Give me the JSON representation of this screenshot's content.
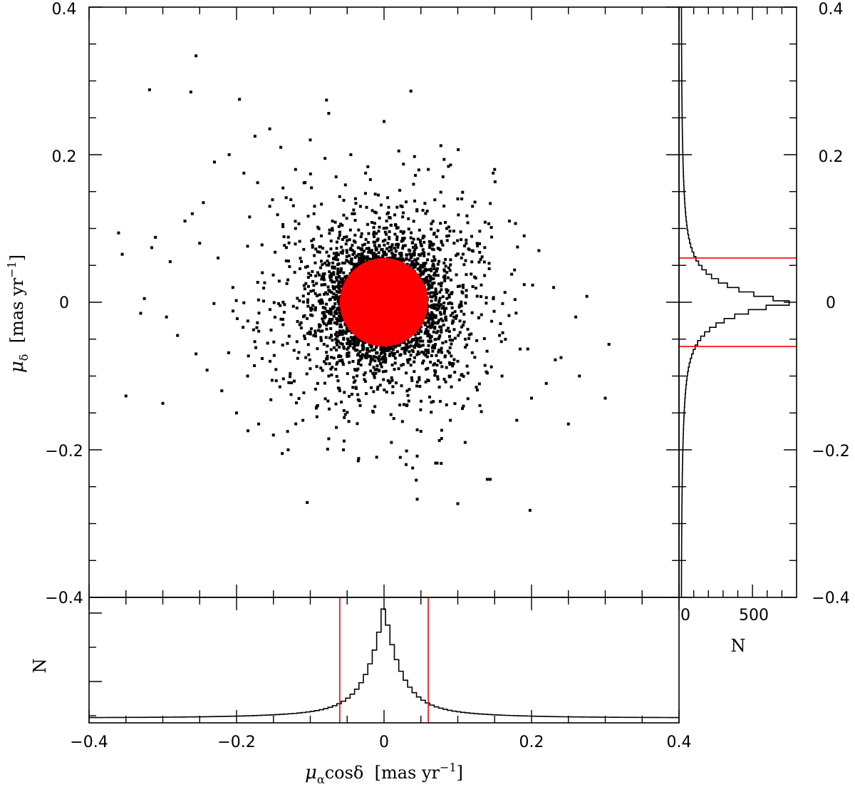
{
  "chart_data": {
    "type": "scatter",
    "panels": [
      "main-scatter",
      "bottom-histogram",
      "right-histogram"
    ],
    "xlim": [
      -0.4,
      0.4
    ],
    "ylim": [
      -0.4,
      0.4
    ],
    "x_ticks": [
      "−0.4",
      "−0.2",
      "0",
      "0.2",
      "0.4"
    ],
    "y_ticks": [
      "−0.4",
      "−0.2",
      "0",
      "0.2",
      "0.4"
    ],
    "xlabel": {
      "symbol": "μ",
      "sub": "α",
      "rest": "cosδ  [mas yr",
      "exp": "−1",
      "close": "]"
    },
    "ylabel": {
      "symbol": "μ",
      "sub": "δ",
      "rest": "  [mas yr",
      "exp": "−1",
      "close": "]"
    },
    "hist_x_label": "N",
    "hist_y_label": "N",
    "hist_y_ticks": [
      "0",
      "500"
    ],
    "hist_y_xlim": [
      0,
      800
    ],
    "selection_radius": 0.06,
    "circle_center": [
      0.0,
      0.0
    ],
    "colors": {
      "points": "#000000",
      "selection": "#ff0000",
      "axes": "#000000"
    },
    "scatter_points": [
      [
        -0.36,
        0.094
      ],
      [
        -0.355,
        0.065
      ],
      [
        -0.33,
        -0.015
      ],
      [
        -0.325,
        0.005
      ],
      [
        -0.315,
        0.074
      ],
      [
        -0.31,
        0.088
      ],
      [
        -0.3,
        -0.137
      ],
      [
        -0.295,
        -0.02
      ],
      [
        -0.29,
        0.055
      ],
      [
        -0.28,
        -0.045
      ],
      [
        -0.27,
        0.11
      ],
      [
        -0.26,
        0.12
      ],
      [
        -0.255,
        -0.07
      ],
      [
        -0.25,
        0.08
      ],
      [
        -0.245,
        0.135
      ],
      [
        -0.24,
        -0.092
      ],
      [
        -0.23,
        0.19
      ],
      [
        -0.225,
        0.06
      ],
      [
        -0.22,
        -0.12
      ],
      [
        -0.21,
        0.2
      ],
      [
        -0.205,
        0.02
      ],
      [
        -0.2,
        -0.15
      ],
      [
        -0.19,
        0.175
      ],
      [
        -0.185,
        -0.1
      ],
      [
        -0.175,
        0.225
      ],
      [
        -0.17,
        -0.165
      ],
      [
        -0.165,
        0.04
      ],
      [
        -0.155,
        0.235
      ],
      [
        -0.15,
        -0.18
      ],
      [
        -0.14,
        0.21
      ],
      [
        -0.13,
        -0.2
      ],
      [
        -0.12,
        0.18
      ],
      [
        -0.11,
        -0.16
      ],
      [
        -0.1,
        0.22
      ],
      [
        -0.09,
        -0.14
      ],
      [
        -0.08,
        0.195
      ],
      [
        -0.075,
        -0.185
      ],
      [
        -0.065,
        0.17
      ],
      [
        -0.055,
        -0.2
      ],
      [
        -0.045,
        0.2
      ],
      [
        -0.035,
        -0.215
      ],
      [
        -0.025,
        0.175
      ],
      [
        -0.01,
        -0.21
      ],
      [
        0.0,
        0.245
      ],
      [
        0.01,
        -0.19
      ],
      [
        0.02,
        0.205
      ],
      [
        0.03,
        -0.22
      ],
      [
        0.04,
        0.16
      ],
      [
        0.05,
        -0.175
      ],
      [
        0.06,
        0.18
      ],
      [
        0.07,
        -0.218
      ],
      [
        0.08,
        0.17
      ],
      [
        0.09,
        -0.16
      ],
      [
        0.1,
        0.14
      ],
      [
        0.11,
        -0.19
      ],
      [
        0.12,
        0.13
      ],
      [
        0.13,
        -0.14
      ],
      [
        0.14,
        -0.24
      ],
      [
        0.15,
        0.18
      ],
      [
        0.16,
        -0.1
      ],
      [
        0.17,
        0.11
      ],
      [
        0.18,
        -0.16
      ],
      [
        0.19,
        0.09
      ],
      [
        0.2,
        -0.13
      ],
      [
        0.21,
        0.07
      ],
      [
        0.22,
        -0.11
      ],
      [
        0.23,
        0.02
      ],
      [
        0.24,
        -0.075
      ],
      [
        0.25,
        -0.165
      ],
      [
        0.26,
        -0.02
      ],
      [
        0.265,
        -0.1
      ],
      [
        0.275,
        0.008
      ],
      [
        0.3,
        -0.13
      ],
      [
        0.305,
        -0.057
      ],
      [
        -0.35,
        -0.127
      ],
      [
        -0.318,
        0.288
      ],
      [
        -0.262,
        0.285
      ],
      [
        -0.255,
        0.334
      ],
      [
        -0.196,
        0.275
      ],
      [
        -0.078,
        0.274
      ],
      [
        -0.075,
        0.256
      ],
      [
        0.0,
        0.245
      ],
      [
        0.148,
        0.175
      ],
      [
        0.198,
        -0.282
      ],
      [
        0.1,
        -0.273
      ],
      [
        0.045,
        -0.267
      ],
      [
        0.072,
        -0.218
      ],
      [
        0.144,
        -0.24
      ],
      [
        -0.138,
        -0.205
      ],
      [
        -0.155,
        0.13
      ],
      [
        -0.12,
        0.1
      ],
      [
        -0.095,
        0.12
      ],
      [
        -0.085,
        0.09
      ],
      [
        -0.07,
        0.11
      ],
      [
        -0.06,
        0.095
      ],
      [
        -0.1,
        -0.09
      ],
      [
        -0.09,
        -0.11
      ],
      [
        -0.075,
        -0.1
      ],
      [
        -0.06,
        -0.12
      ],
      [
        0.085,
        0.1
      ],
      [
        0.095,
        0.08
      ],
      [
        0.105,
        0.06
      ],
      [
        0.1,
        -0.08
      ],
      [
        0.09,
        -0.1
      ],
      [
        0.075,
        -0.115
      ]
    ],
    "hist_x": {
      "bin_edges_start": -0.4,
      "bin_width": 0.006,
      "counts_relative": "peaked-at-zero"
    }
  }
}
